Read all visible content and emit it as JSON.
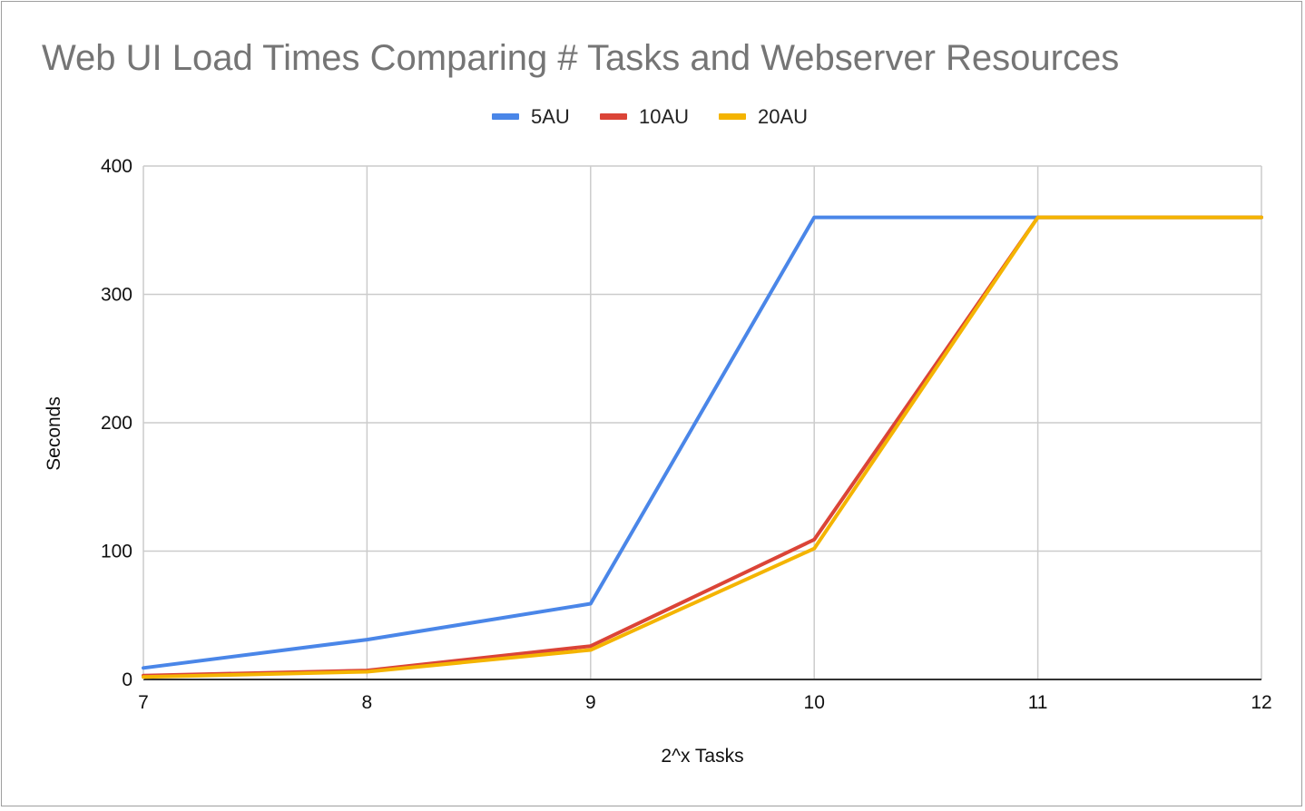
{
  "chart_data": {
    "type": "line",
    "title": "Web UI Load Times Comparing # Tasks and Webserver Resources",
    "xlabel": "2^x Tasks",
    "ylabel": "Seconds",
    "x": [
      7,
      8,
      9,
      10,
      11,
      12
    ],
    "xlim": [
      7,
      12
    ],
    "ylim": [
      0,
      400
    ],
    "x_ticks": [
      "7",
      "8",
      "9",
      "10",
      "11",
      "12"
    ],
    "y_ticks": [
      "0",
      "100",
      "200",
      "300",
      "400"
    ],
    "grid": true,
    "legend_position": "top",
    "series": [
      {
        "name": "5AU",
        "color": "#4a86e8",
        "values": [
          9,
          31,
          59,
          360,
          360,
          360
        ]
      },
      {
        "name": "10AU",
        "color": "#db4437",
        "values": [
          3,
          7,
          26,
          109,
          360,
          360
        ]
      },
      {
        "name": "20AU",
        "color": "#f4b400",
        "values": [
          2,
          6,
          23,
          102,
          360,
          360
        ]
      }
    ]
  }
}
